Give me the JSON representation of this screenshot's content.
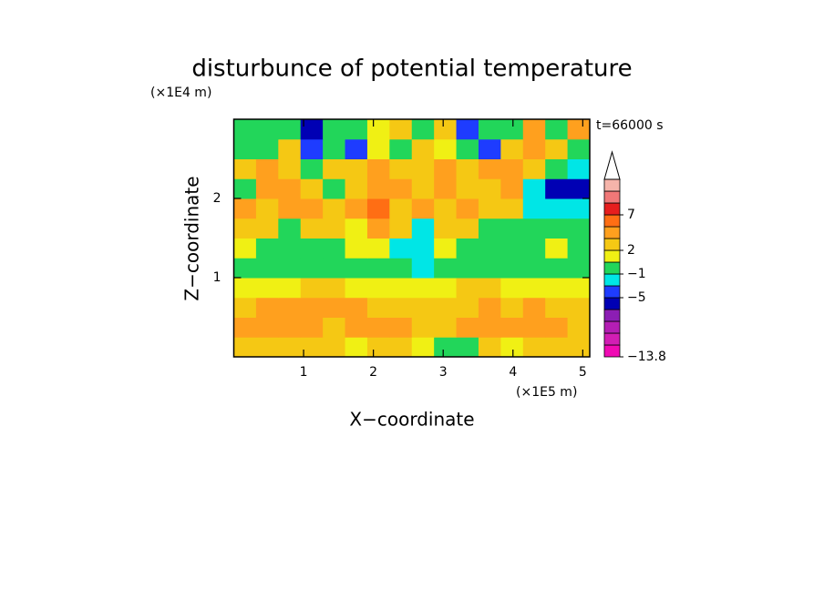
{
  "chart_data": {
    "type": "contour",
    "title": "disturbunce of potential temperature",
    "xlabel": "X−coordinate",
    "ylabel": "Z−coordinate",
    "x_unit": "(×1E5 m)",
    "y_unit": "(×1E4 m)",
    "annotation": "t=66000 s",
    "xlim": [
      0,
      5.1
    ],
    "ylim": [
      0,
      3
    ],
    "xticks": [
      1,
      2,
      3,
      4,
      5
    ],
    "yticks": [
      1,
      2
    ],
    "z": [
      [
        2.5,
        2.5,
        2.5,
        2.5,
        2.5,
        1.5,
        2.5,
        2.5,
        1.5,
        0.5,
        0.5,
        2.5,
        1.5,
        2.5,
        2.5,
        2.5
      ],
      [
        4,
        4,
        4,
        4,
        2.5,
        4,
        4,
        4,
        2.5,
        2.5,
        4,
        4,
        4,
        4,
        4,
        2.5
      ],
      [
        2.5,
        4,
        4,
        4,
        4,
        4,
        2.5,
        2.5,
        2.5,
        2.5,
        2.5,
        4,
        2.5,
        4,
        2.5,
        2.5
      ],
      [
        1.5,
        1.5,
        1.5,
        2.5,
        2.5,
        1.5,
        1.5,
        1.5,
        1.5,
        1.5,
        2.5,
        2.5,
        1.5,
        1.5,
        1.5,
        1.5
      ],
      [
        0,
        0,
        0,
        0,
        0,
        0.5,
        0,
        0,
        -2,
        0,
        0,
        0,
        0,
        0,
        0,
        0
      ],
      [
        1.5,
        0,
        0,
        0,
        0,
        1.5,
        1.5,
        -2,
        -2,
        1.5,
        0,
        0,
        0,
        0,
        1.5,
        0
      ],
      [
        2.5,
        2.5,
        0,
        2.5,
        2.5,
        1.5,
        4,
        2.5,
        -2,
        2.5,
        2.5,
        0,
        0,
        0,
        0,
        0
      ],
      [
        4,
        2.5,
        4,
        4,
        2.5,
        4,
        6,
        2.5,
        4,
        2.5,
        4,
        2.5,
        2.5,
        -2,
        -2,
        -2
      ],
      [
        0,
        4,
        4,
        2.5,
        0,
        2.5,
        4,
        4,
        2.5,
        4,
        2.5,
        2.5,
        4,
        -2,
        -6,
        -6
      ],
      [
        2.5,
        4,
        2.5,
        0,
        2.5,
        2.5,
        4,
        2.5,
        2.5,
        4,
        2.5,
        4,
        4,
        2.5,
        0,
        -2
      ],
      [
        0,
        0,
        2.5,
        -4,
        0,
        -4,
        1.5,
        0,
        2.5,
        1.5,
        0,
        -4,
        2.5,
        4,
        2.5,
        0
      ],
      [
        0,
        0,
        0,
        -6,
        0,
        0,
        1.5,
        2.5,
        0,
        2.5,
        -4,
        0,
        0,
        4,
        0,
        4
      ]
    ],
    "colorbar": {
      "levels": [
        -13.8,
        -12,
        -10,
        -8,
        -7,
        -5,
        -3,
        -1,
        1,
        2,
        3,
        5,
        7,
        9,
        11,
        13
      ],
      "colors": [
        "#f00ab4",
        "#d21eb4",
        "#b41eb4",
        "#8c1eb4",
        "#0000b4",
        "#1e3cff",
        "#00e6e6",
        "#22d65a",
        "#f0f014",
        "#f5c814",
        "#ffa01e",
        "#ff6e14",
        "#e61e1e",
        "#f07878",
        "#f5b4aa"
      ],
      "extend_color": "#ffffff",
      "ticks": [
        7,
        2,
        {
          "value": -1,
          "label": "−1"
        },
        {
          "value": -5,
          "label": "−5"
        },
        {
          "value": -13.8,
          "label": "−13.8"
        }
      ]
    }
  }
}
